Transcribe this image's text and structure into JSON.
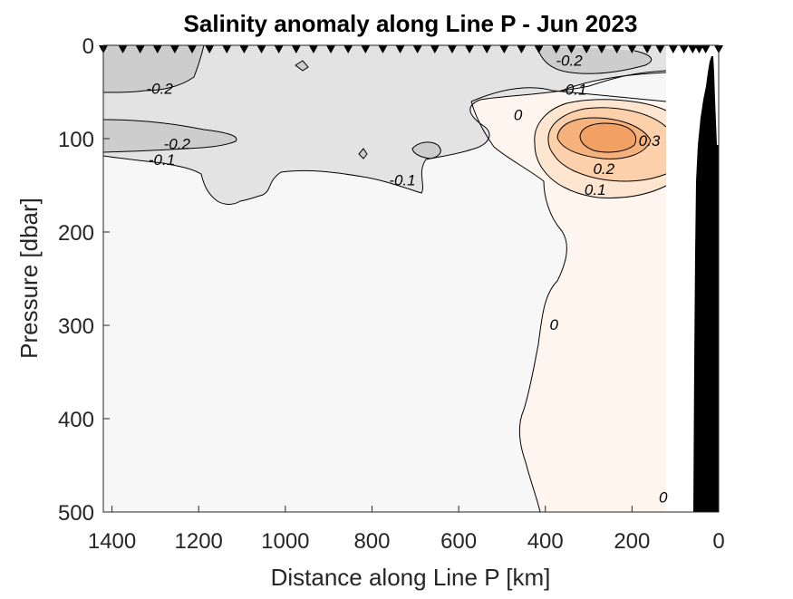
{
  "chart_data": {
    "type": "contour",
    "title": "Salinity anomaly along Line P - Jun 2023",
    "xlabel": "Distance along Line P [km]",
    "ylabel": "Pressure [dbar]",
    "xlim": [
      1420,
      0
    ],
    "ylim": [
      0,
      500
    ],
    "x_reversed": true,
    "y_reversed": true,
    "xticks": [
      1400,
      1200,
      1000,
      800,
      600,
      400,
      200,
      0
    ],
    "yticks": [
      0,
      100,
      200,
      300,
      400,
      500
    ],
    "station_distances_km": [
      1420,
      1375,
      1335,
      1295,
      1255,
      1215,
      1175,
      1135,
      1095,
      1055,
      1015,
      975,
      935,
      895,
      855,
      815,
      775,
      735,
      695,
      655,
      615,
      575,
      535,
      495,
      455,
      415,
      375,
      340,
      305,
      270,
      235,
      200,
      165,
      135,
      105,
      80,
      60,
      45,
      30,
      0
    ],
    "contour_levels": [
      -0.2,
      -0.1,
      0,
      0.1,
      0.2,
      0.3
    ],
    "contour_labels": [
      {
        "text": "-0.2",
        "x": 1290,
        "depth": 52
      },
      {
        "text": "-0.2",
        "x": 1250,
        "depth": 111
      },
      {
        "text": "-0.1",
        "x": 1285,
        "depth": 128
      },
      {
        "text": "-0.1",
        "x": 730,
        "depth": 150
      },
      {
        "text": "-0.2",
        "x": 345,
        "depth": 22
      },
      {
        "text": "-0.1",
        "x": 335,
        "depth": 53
      },
      {
        "text": "0",
        "x": 463,
        "depth": 80
      },
      {
        "text": "0.3",
        "x": 160,
        "depth": 108
      },
      {
        "text": "0.2",
        "x": 265,
        "depth": 138
      },
      {
        "text": "0.1",
        "x": 285,
        "depth": 160
      },
      {
        "text": "0",
        "x": 380,
        "depth": 305
      },
      {
        "text": "0",
        "x": 128,
        "depth": 490
      }
    ],
    "colors": {
      "neg2": "#cdcdcd",
      "neg1": "#e3e3e3",
      "zero": "#f7f7f7",
      "pos0": "#fdf5ee",
      "pos1": "#fde5d0",
      "pos2": "#fbd0aa",
      "pos3": "#f6b27c",
      "bathymetry": "#000000"
    }
  }
}
